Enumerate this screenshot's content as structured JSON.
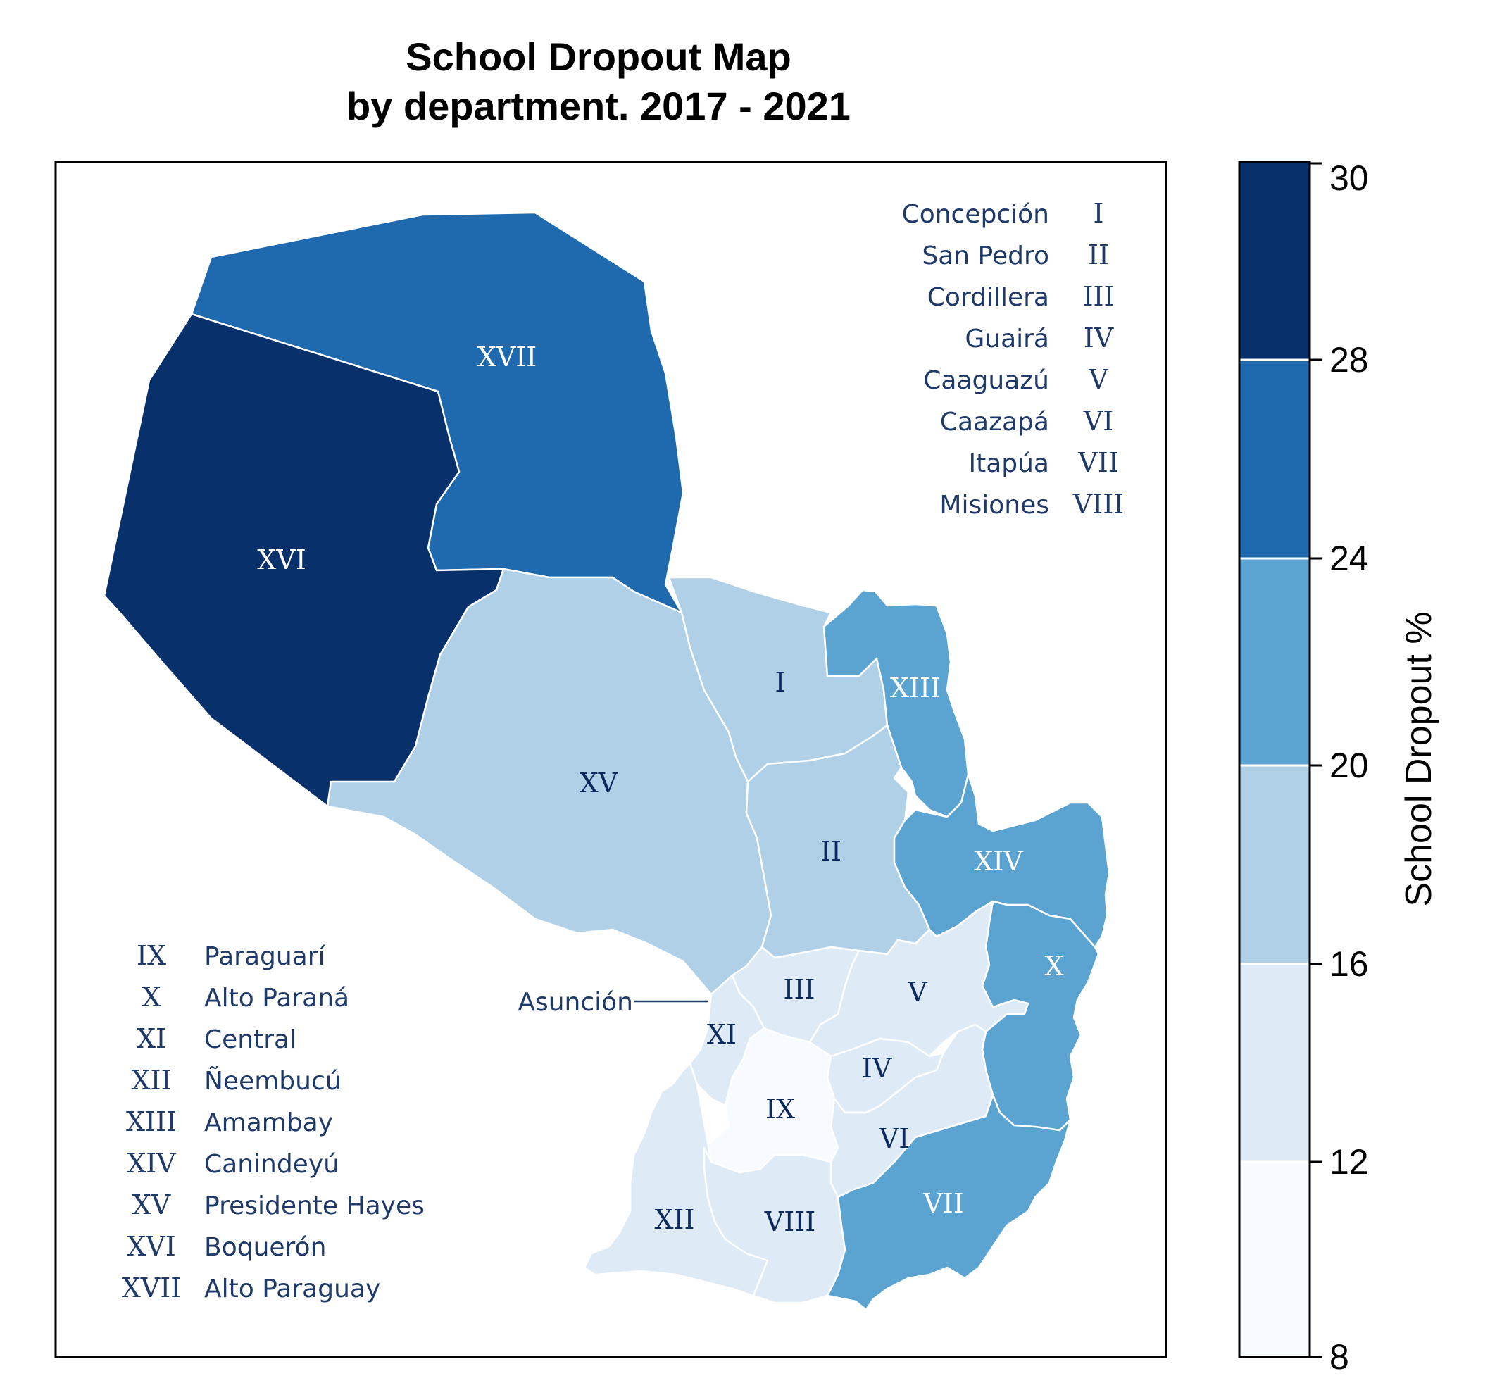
{
  "title_line1": "School Dropout Map",
  "title_line2": "by department. 2017 - 2021",
  "colors": {
    "c8_12": "#f7fbff",
    "c12_16": "#deebf7",
    "c16_20": "#afd0e6",
    "c20_24": "#5ba3d0",
    "c24_28": "#1f69af",
    "c28_30": "#08306b",
    "legend_text": "#1f3a68"
  },
  "colorbar": {
    "label": "School Dropout %",
    "ticks": [
      "8",
      "12",
      "16",
      "20",
      "24",
      "28",
      "30"
    ]
  },
  "map_labels": {
    "I": "I",
    "II": "II",
    "III": "III",
    "IV": "IV",
    "V": "V",
    "VI": "VI",
    "VII": "VII",
    "VIII": "VIII",
    "IX": "IX",
    "X": "X",
    "XI": "XI",
    "XII": "XII",
    "XIII": "XIII",
    "XIV": "XIV",
    "XV": "XV",
    "XVI": "XVI",
    "XVII": "XVII",
    "asuncion": "Asunción"
  },
  "legend_right": [
    {
      "name": "Concepción",
      "num": "I"
    },
    {
      "name": "San Pedro",
      "num": "II"
    },
    {
      "name": "Cordillera",
      "num": "III"
    },
    {
      "name": "Guairá",
      "num": "IV"
    },
    {
      "name": "Caaguazú",
      "num": "V"
    },
    {
      "name": "Caazapá",
      "num": "VI"
    },
    {
      "name": "Itapúa",
      "num": "VII"
    },
    {
      "name": "Misiones",
      "num": "VIII"
    }
  ],
  "legend_left": [
    {
      "num": "IX",
      "name": "Paraguarí"
    },
    {
      "num": "X",
      "name": "Alto Paraná"
    },
    {
      "num": "XI",
      "name": "Central"
    },
    {
      "num": "XII",
      "name": "Ñeembucú"
    },
    {
      "num": "XIII",
      "name": "Amambay"
    },
    {
      "num": "XIV",
      "name": "Canindeyú"
    },
    {
      "num": "XV",
      "name": "Presidente Hayes"
    },
    {
      "num": "XVI",
      "name": "Boquerón"
    },
    {
      "num": "XVII",
      "name": "Alto Paraguay"
    }
  ]
}
